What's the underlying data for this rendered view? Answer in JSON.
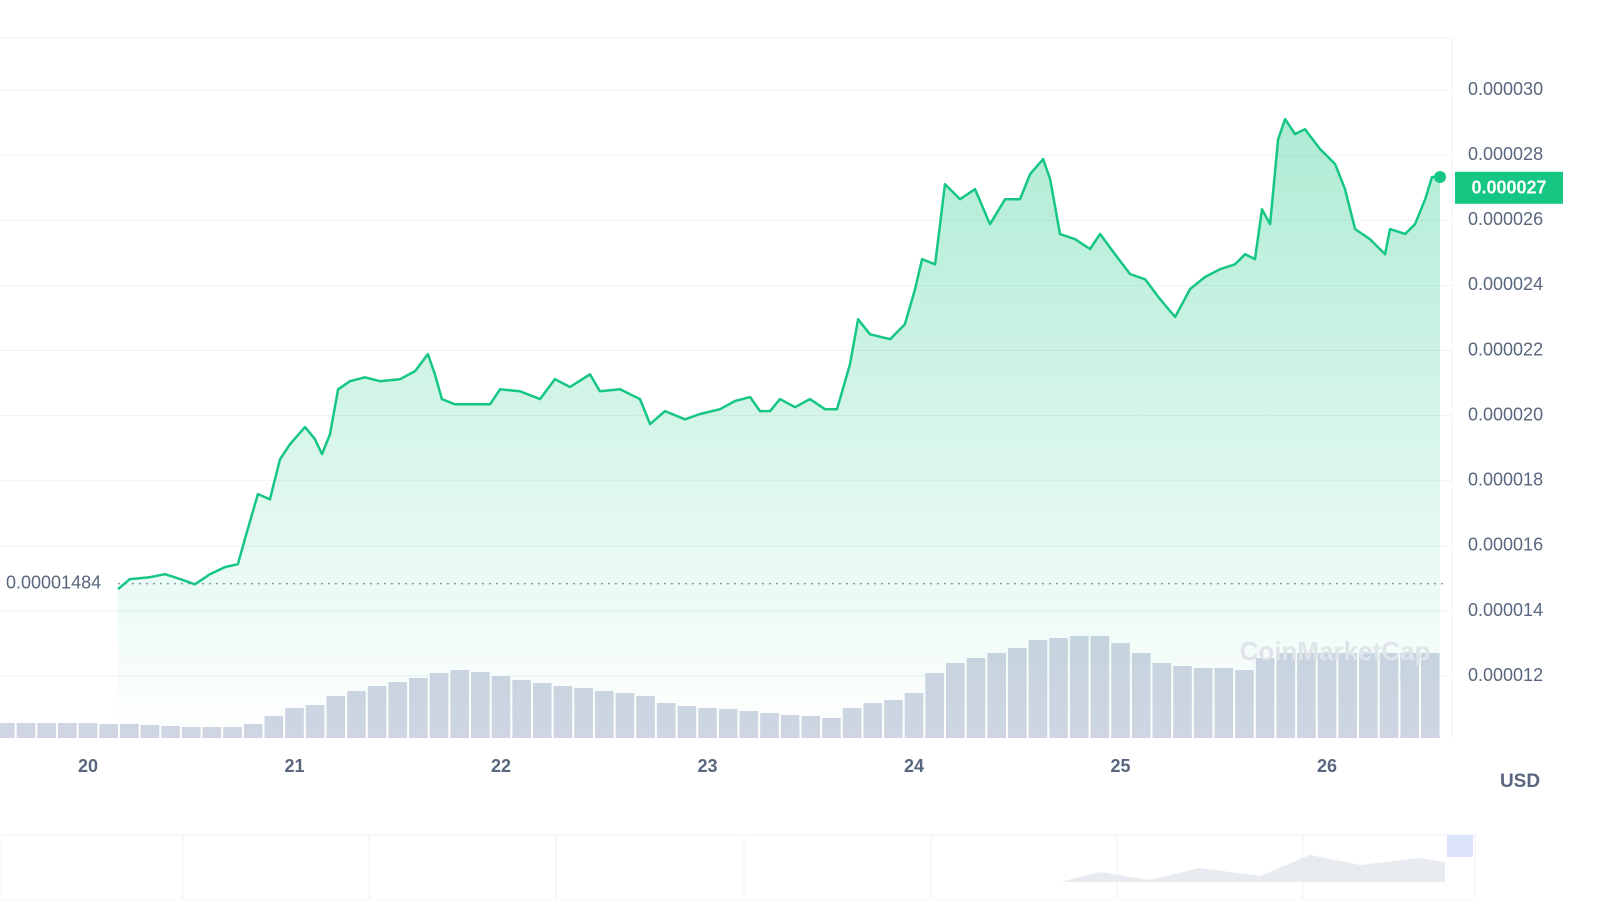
{
  "chart_data": {
    "type": "area",
    "watermark": "CoinMarketCap",
    "currency": "USD",
    "color": "#16c784",
    "start_price": {
      "value": 1.484e-05,
      "label": "0.00001484"
    },
    "current_price": {
      "value": 2.7e-05,
      "label": "0.000027"
    },
    "xlim": [
      19.574,
      26.605
    ],
    "xticks": [
      20,
      21,
      22,
      23,
      24,
      25,
      26
    ],
    "ylim": [
      1.01e-05,
      3.16e-05
    ],
    "yticks": [
      {
        "value": 1.2e-05,
        "label": "0.000012"
      },
      {
        "value": 1.4e-05,
        "label": "0.000014"
      },
      {
        "value": 1.6e-05,
        "label": "0.000016"
      },
      {
        "value": 1.8e-05,
        "label": "0.000018"
      },
      {
        "value": 2e-05,
        "label": "0.000020"
      },
      {
        "value": 2.2e-05,
        "label": "0.000022"
      },
      {
        "value": 2.4e-05,
        "label": "0.000024"
      },
      {
        "value": 2.6e-05,
        "label": "0.000026"
      },
      {
        "value": 2.8e-05,
        "label": "0.000028"
      },
      {
        "value": 3e-05,
        "label": "0.000030"
      }
    ],
    "grid": true,
    "x": [
      20.145,
      20.203,
      20.3,
      20.373,
      20.446,
      20.518,
      20.591,
      20.663,
      20.726,
      20.76,
      20.823,
      20.881,
      20.93,
      20.978,
      21.051,
      21.099,
      21.133,
      21.172,
      21.211,
      21.269,
      21.341,
      21.414,
      21.511,
      21.584,
      21.646,
      21.68,
      21.714,
      21.777,
      21.85,
      21.947,
      21.995,
      22.092,
      22.189,
      22.261,
      22.334,
      22.431,
      22.479,
      22.576,
      22.673,
      22.722,
      22.794,
      22.891,
      22.964,
      23.061,
      23.133,
      23.206,
      23.254,
      23.303,
      23.351,
      23.424,
      23.496,
      23.569,
      23.627,
      23.69,
      23.729,
      23.787,
      23.884,
      23.956,
      24.005,
      24.039,
      24.102,
      24.15,
      24.223,
      24.295,
      24.368,
      24.441,
      24.513,
      24.562,
      24.625,
      24.659,
      24.707,
      24.78,
      24.852,
      24.901,
      24.973,
      25.046,
      25.119,
      25.191,
      25.264,
      25.337,
      25.409,
      25.482,
      25.554,
      25.603,
      25.651,
      25.685,
      25.724,
      25.763,
      25.797,
      25.845,
      25.893,
      25.966,
      26.039,
      26.087,
      26.136,
      26.208,
      26.281,
      26.305,
      26.378,
      26.426,
      26.475,
      26.508,
      26.547
    ],
    "series": [
      {
        "color": "#16c784",
        "values": [
          1.467e-05,
          1.498e-05,
          1.504e-05,
          1.513e-05,
          1.498e-05,
          1.482e-05,
          1.513e-05,
          1.535e-05,
          1.544e-05,
          1.621e-05,
          1.759e-05,
          1.743e-05,
          1.866e-05,
          1.912e-05,
          1.965e-05,
          1.928e-05,
          1.882e-05,
          1.943e-05,
          2.081e-05,
          2.106e-05,
          2.118e-05,
          2.106e-05,
          2.112e-05,
          2.137e-05,
          2.189e-05,
          2.127e-05,
          2.051e-05,
          2.035e-05,
          2.035e-05,
          2.035e-05,
          2.081e-05,
          2.075e-05,
          2.051e-05,
          2.112e-05,
          2.088e-05,
          2.127e-05,
          2.075e-05,
          2.081e-05,
          2.051e-05,
          1.974e-05,
          2.014e-05,
          1.989e-05,
          2.005e-05,
          2.02e-05,
          2.045e-05,
          2.057e-05,
          2.014e-05,
          2.014e-05,
          2.051e-05,
          2.026e-05,
          2.051e-05,
          2.02e-05,
          2.02e-05,
          2.158e-05,
          2.296e-05,
          2.25e-05,
          2.235e-05,
          2.281e-05,
          2.389e-05,
          2.481e-05,
          2.465e-05,
          2.711e-05,
          2.665e-05,
          2.696e-05,
          2.588e-05,
          2.665e-05,
          2.665e-05,
          2.742e-05,
          2.788e-05,
          2.727e-05,
          2.558e-05,
          2.542e-05,
          2.512e-05,
          2.558e-05,
          2.496e-05,
          2.435e-05,
          2.419e-05,
          2.358e-05,
          2.303e-05,
          2.389e-05,
          2.426e-05,
          2.45e-05,
          2.465e-05,
          2.496e-05,
          2.481e-05,
          2.634e-05,
          2.588e-05,
          2.849e-05,
          2.911e-05,
          2.865e-05,
          2.88e-05,
          2.819e-05,
          2.773e-05,
          2.696e-05,
          2.573e-05,
          2.542e-05,
          2.496e-05,
          2.573e-05,
          2.558e-05,
          2.588e-05,
          2.665e-05,
          2.733e-05,
          2.733e-05
        ]
      }
    ],
    "volume": {
      "color": "#cfd5e3",
      "x": [
        19.6,
        19.7,
        19.8,
        19.9,
        20.0,
        20.1,
        20.2,
        20.3,
        20.4,
        20.5,
        20.6,
        20.7,
        20.8,
        20.9,
        21.0,
        21.1,
        21.2,
        21.3,
        21.4,
        21.5,
        21.6,
        21.7,
        21.8,
        21.9,
        22.0,
        22.1,
        22.2,
        22.3,
        22.4,
        22.5,
        22.6,
        22.7,
        22.8,
        22.9,
        23.0,
        23.1,
        23.2,
        23.3,
        23.4,
        23.5,
        23.6,
        23.7,
        23.8,
        23.9,
        24.0,
        24.1,
        24.2,
        24.3,
        24.4,
        24.5,
        24.6,
        24.7,
        24.8,
        24.9,
        25.0,
        25.1,
        25.2,
        25.3,
        25.4,
        25.5,
        25.6,
        25.7,
        25.8,
        25.9,
        26.0,
        26.1,
        26.2,
        26.3,
        26.4,
        26.5
      ],
      "values": [
        15,
        15,
        15,
        15,
        15,
        14,
        14,
        13,
        12,
        11,
        11,
        11,
        14,
        22,
        30,
        33,
        42,
        47,
        52,
        56,
        60,
        65,
        68,
        66,
        62,
        58,
        55,
        52,
        50,
        47,
        45,
        42,
        35,
        32,
        30,
        29,
        27,
        25,
        23,
        22,
        20,
        30,
        35,
        38,
        45,
        65,
        75,
        80,
        85,
        90,
        98,
        100,
        102,
        102,
        95,
        85,
        75,
        72,
        70,
        70,
        68,
        80,
        85,
        85,
        85,
        85,
        85,
        85,
        85,
        85
      ]
    }
  }
}
